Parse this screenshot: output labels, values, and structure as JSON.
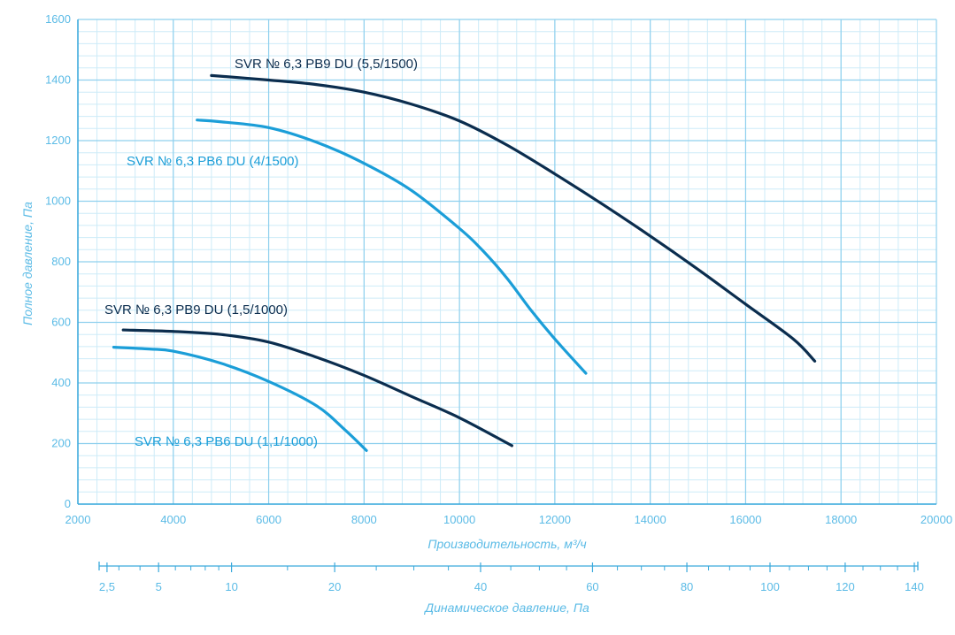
{
  "chart_data": {
    "type": "line",
    "title": "",
    "xlabel": "Производительность, м³/ч",
    "ylabel": "Полное давление, Па",
    "x2label": "Динамическое давление, Па",
    "xlim": [
      2000,
      20000
    ],
    "ylim": [
      0,
      1600
    ],
    "x_ticks": [
      "2000",
      "4000",
      "6000",
      "8000",
      "10000",
      "12000",
      "14000",
      "16000",
      "18000",
      "20000"
    ],
    "y_ticks": [
      "0",
      "200",
      "400",
      "600",
      "800",
      "1000",
      "1200",
      "1400",
      "1600"
    ],
    "x2_ticks": [
      "2,5",
      "5",
      "10",
      "20",
      "40",
      "60",
      "80",
      "100",
      "120",
      "140"
    ],
    "grid": true,
    "colors": {
      "axis": "#3aa9dc",
      "grid_major": "#8fd0ee",
      "grid_minor": "#cdebf8",
      "dark": "#0b2d4e",
      "light": "#1b9ed8"
    },
    "series": [
      {
        "name": "SVR № 6,3 PB9 DU (5,5/1500)",
        "color": "#0b2d4e",
        "x": [
          4800,
          6000,
          7000,
          8000,
          9000,
          10000,
          11000,
          12000,
          13000,
          14000,
          15000,
          16000,
          17000,
          17450
        ],
        "y": [
          1415,
          1400,
          1385,
          1360,
          1320,
          1265,
          1185,
          1090,
          990,
          885,
          775,
          660,
          545,
          472
        ]
      },
      {
        "name": "SVR № 6,3 PB6 DU (4/1500)",
        "color": "#1b9ed8",
        "x": [
          4500,
          5000,
          6000,
          7000,
          8000,
          9000,
          10000,
          10500,
          11000,
          11500,
          12000,
          12650
        ],
        "y": [
          1268,
          1262,
          1243,
          1195,
          1125,
          1035,
          910,
          835,
          745,
          640,
          545,
          432
        ]
      },
      {
        "name": "SVR № 6,3 PB9 DU (1,5/1000)",
        "color": "#0b2d4e",
        "x": [
          2950,
          4000,
          5000,
          6000,
          7000,
          8000,
          9000,
          10000,
          11100
        ],
        "y": [
          575,
          570,
          560,
          535,
          485,
          425,
          355,
          285,
          193
        ]
      },
      {
        "name": "SVR № 6,3 PB6 DU (1,1/1000)",
        "color": "#1b9ed8",
        "x": [
          2750,
          3500,
          4000,
          5000,
          6000,
          7000,
          7600,
          8050
        ],
        "y": [
          518,
          512,
          505,
          465,
          405,
          325,
          245,
          177
        ]
      }
    ]
  }
}
